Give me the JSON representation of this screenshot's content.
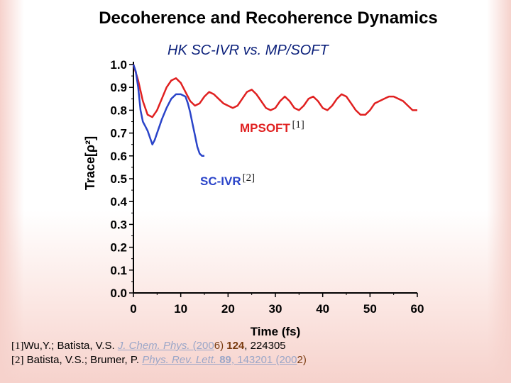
{
  "title": "Decoherence and Recoherence Dynamics",
  "subtitle": {
    "part1": "HK SC-IVR",
    "part2": " vs. ",
    "part3": "MP/SOFT"
  },
  "chart_data": {
    "type": "line",
    "xlabel": "Time (fs)",
    "ylabel": "Trace[ρ²]",
    "xlim": [
      0,
      60
    ],
    "ylim": [
      0.0,
      1.0
    ],
    "x_ticks": [
      "0",
      "10",
      "20",
      "30",
      "40",
      "50",
      "60"
    ],
    "y_ticks": [
      "0.0",
      "0.1",
      "0.2",
      "0.3",
      "0.4",
      "0.5",
      "0.6",
      "0.7",
      "0.8",
      "0.9",
      "1.0"
    ],
    "grid": false,
    "series": [
      {
        "name": "MPSOFT",
        "ref": "[1]",
        "color": "#e02020",
        "x": [
          0,
          1,
          2,
          3,
          4,
          5,
          6,
          7,
          8,
          9,
          10,
          11,
          12,
          13,
          14,
          15,
          16,
          17,
          18,
          19,
          20,
          21,
          22,
          23,
          24,
          25,
          26,
          27,
          28,
          29,
          30,
          31,
          32,
          33,
          34,
          35,
          36,
          37,
          38,
          39,
          40,
          41,
          42,
          43,
          44,
          45,
          46,
          47,
          48,
          49,
          50,
          51,
          52,
          53,
          54,
          55,
          56,
          57,
          58,
          59,
          60
        ],
        "y": [
          1.0,
          0.93,
          0.84,
          0.78,
          0.77,
          0.8,
          0.85,
          0.9,
          0.93,
          0.94,
          0.92,
          0.88,
          0.84,
          0.82,
          0.83,
          0.86,
          0.88,
          0.87,
          0.85,
          0.83,
          0.82,
          0.81,
          0.82,
          0.85,
          0.88,
          0.89,
          0.87,
          0.84,
          0.81,
          0.8,
          0.81,
          0.84,
          0.86,
          0.84,
          0.81,
          0.8,
          0.82,
          0.85,
          0.86,
          0.84,
          0.81,
          0.8,
          0.82,
          0.85,
          0.87,
          0.86,
          0.83,
          0.8,
          0.78,
          0.78,
          0.8,
          0.83,
          0.84,
          0.85,
          0.86,
          0.86,
          0.85,
          0.84,
          0.82,
          0.8,
          0.8
        ]
      },
      {
        "name": "SC-IVR",
        "ref": "[2]",
        "color": "#2a44c9",
        "x": [
          0,
          0.5,
          1,
          1.5,
          2,
          2.5,
          3,
          3.5,
          4,
          4.5,
          5,
          5.5,
          6,
          7,
          8,
          9,
          10,
          11,
          11.5,
          12,
          12.5,
          13,
          13.5,
          14,
          14.5,
          15
        ],
        "y": [
          1.0,
          0.97,
          0.9,
          0.8,
          0.75,
          0.73,
          0.71,
          0.68,
          0.65,
          0.67,
          0.7,
          0.73,
          0.76,
          0.81,
          0.85,
          0.87,
          0.87,
          0.86,
          0.83,
          0.79,
          0.74,
          0.69,
          0.64,
          0.61,
          0.6,
          0.6
        ]
      }
    ]
  },
  "references": [
    {
      "marker": "[1]",
      "authors": "Wu,Y.; Batista, V.S. ",
      "journal": "J. Chem. Phys.",
      "year_pre": " (200",
      "year_digit": "6",
      "year_post": ") ",
      "volume": "124",
      "pages": ", 224305"
    },
    {
      "marker": "[2]",
      "authors": " Batista, V.S.; Brumer, P. ",
      "journal": "Phys. Rev. Lett.",
      "volume": " 89",
      "pages": ", 143201 (200",
      "year_digit": "2",
      "year_post": ")"
    }
  ]
}
